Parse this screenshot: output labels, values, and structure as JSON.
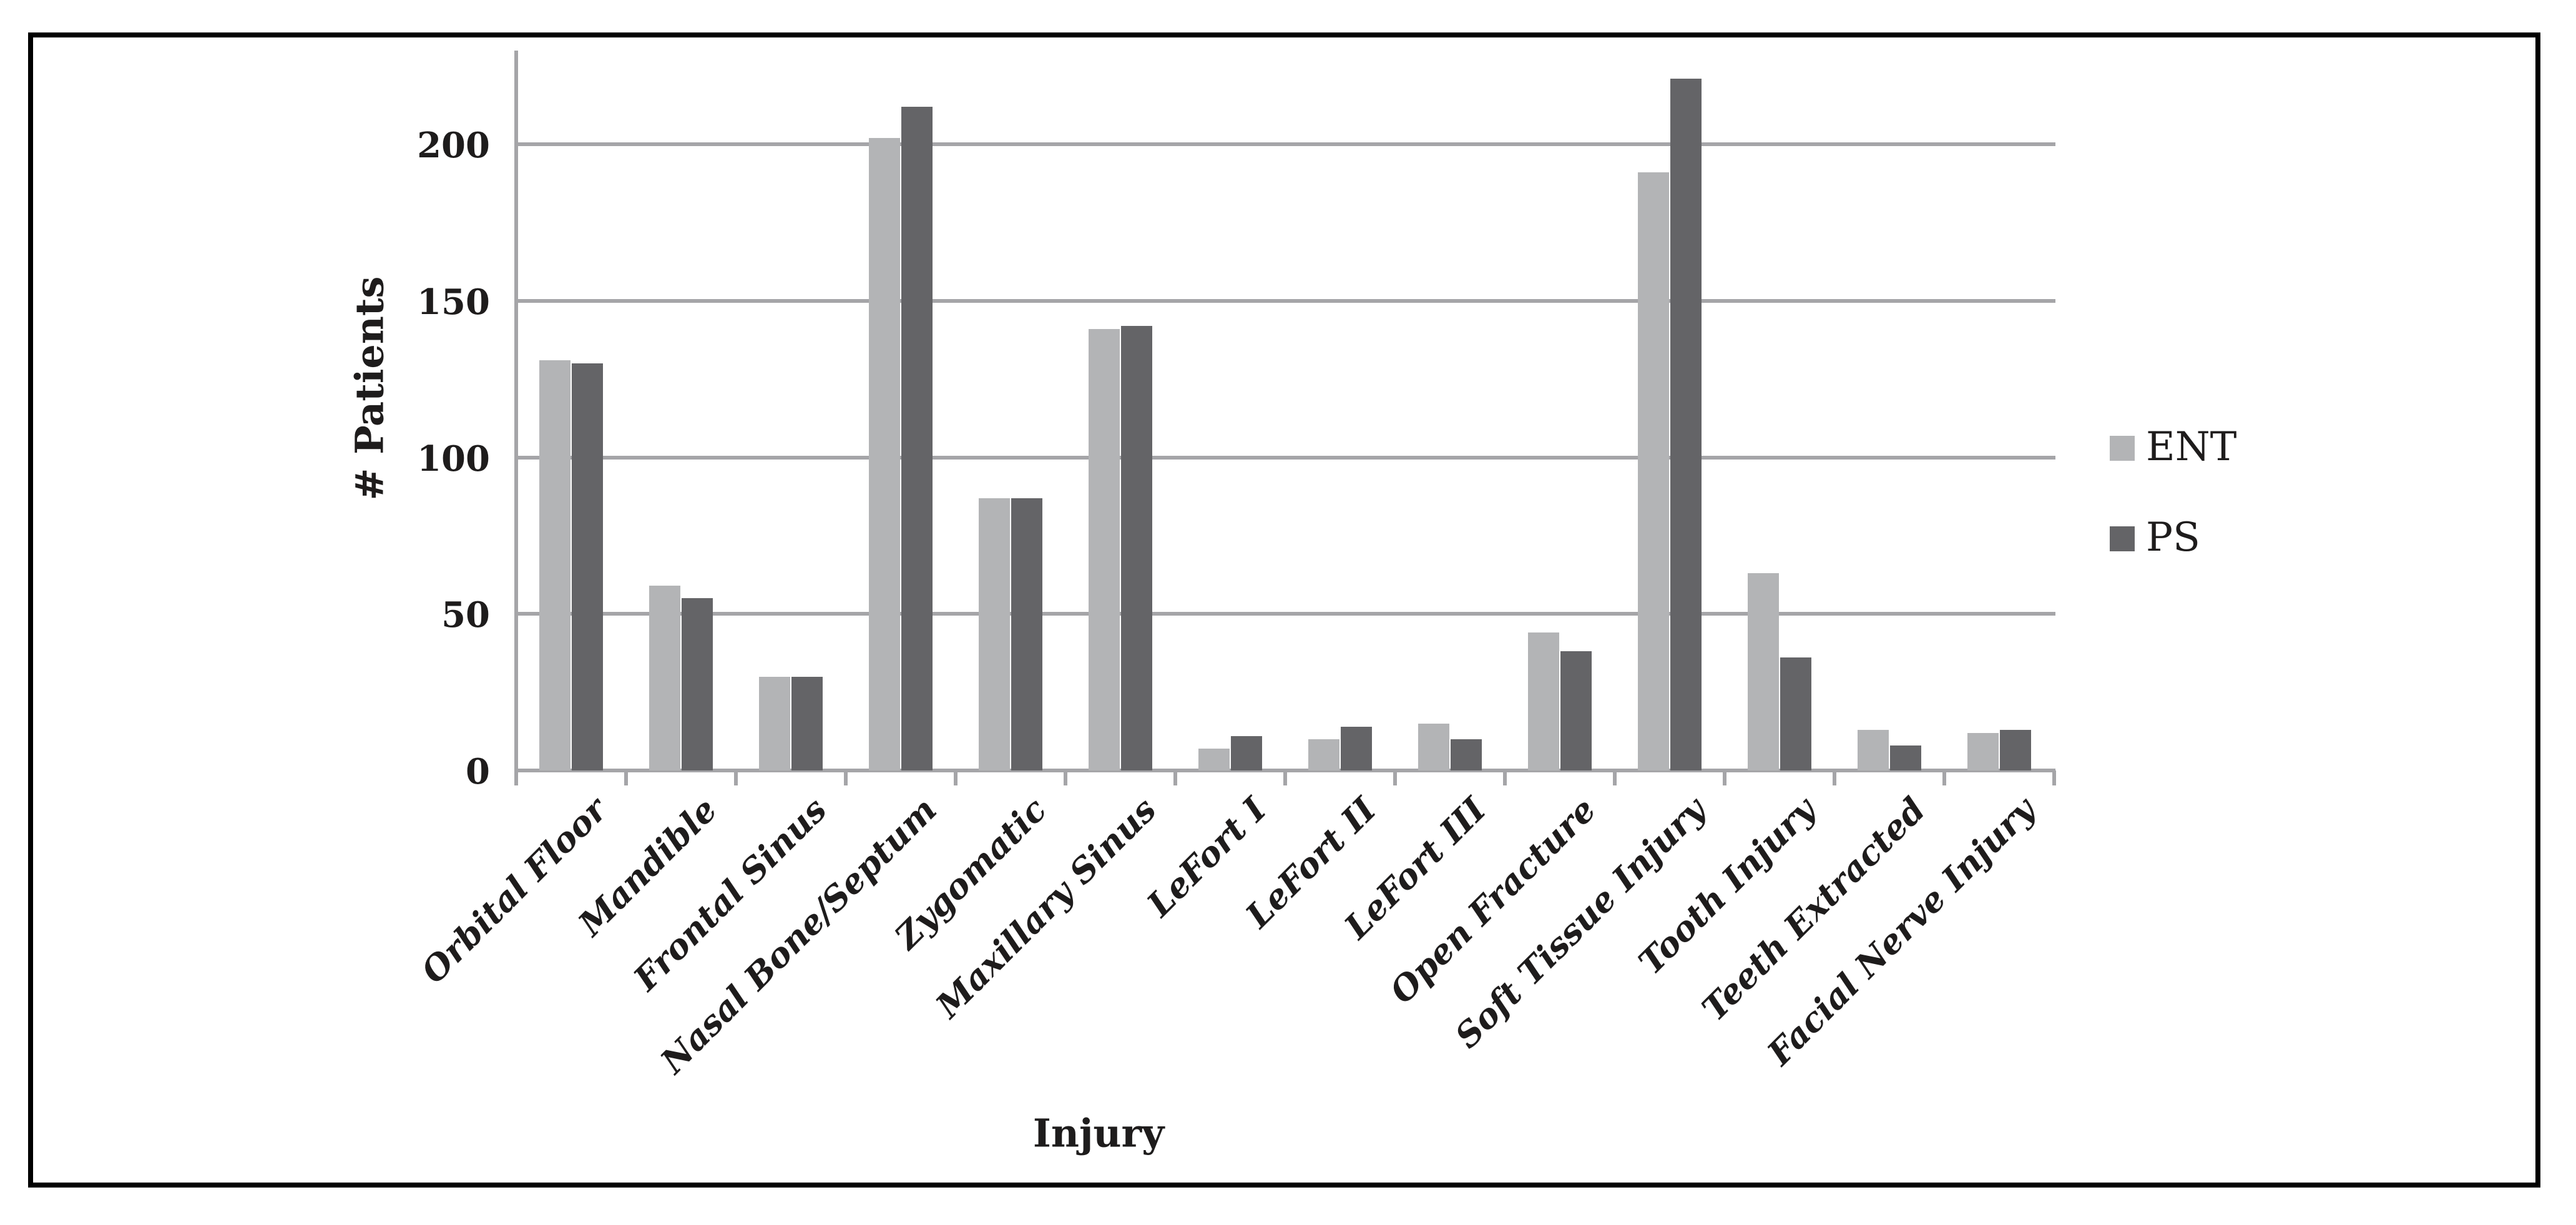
{
  "chart_data": {
    "type": "bar",
    "title": "",
    "xlabel": "Injury",
    "ylabel": "# Patients",
    "categories": [
      "Orbital Floor",
      "Mandible",
      "Frontal Sinus",
      "Nasal Bone/Septum",
      "Zygomatic",
      "Maxillary Sinus",
      "LeFort I",
      "LeFort II",
      "LeFort III",
      "Open Fracture",
      "Soft Tissue Injury",
      "Tooth Injury",
      "Teeth Extracted",
      "Facial Nerve Injury"
    ],
    "series": [
      {
        "name": "ENT",
        "values": [
          131,
          59,
          30,
          202,
          87,
          141,
          7,
          10,
          15,
          44,
          191,
          63,
          13,
          12
        ]
      },
      {
        "name": "PS",
        "values": [
          130,
          55,
          30,
          212,
          87,
          142,
          11,
          14,
          10,
          38,
          221,
          36,
          8,
          13
        ]
      }
    ],
    "ylim": [
      0,
      230
    ],
    "yticks": [
      0,
      50,
      100,
      150,
      200
    ],
    "grid": true,
    "legend_position": "right"
  },
  "legend": {
    "items": [
      {
        "label": "ENT",
        "color": "#b3b4b6"
      },
      {
        "label": "PS",
        "color": "#646467"
      }
    ]
  },
  "colors": {
    "ent": "#b3b4b6",
    "ps": "#646467",
    "gridline": "#a5a5a8",
    "axis": "#a5a5a8",
    "text": "#1e1c1c",
    "frame": "#000000",
    "background": "#ffffff"
  }
}
